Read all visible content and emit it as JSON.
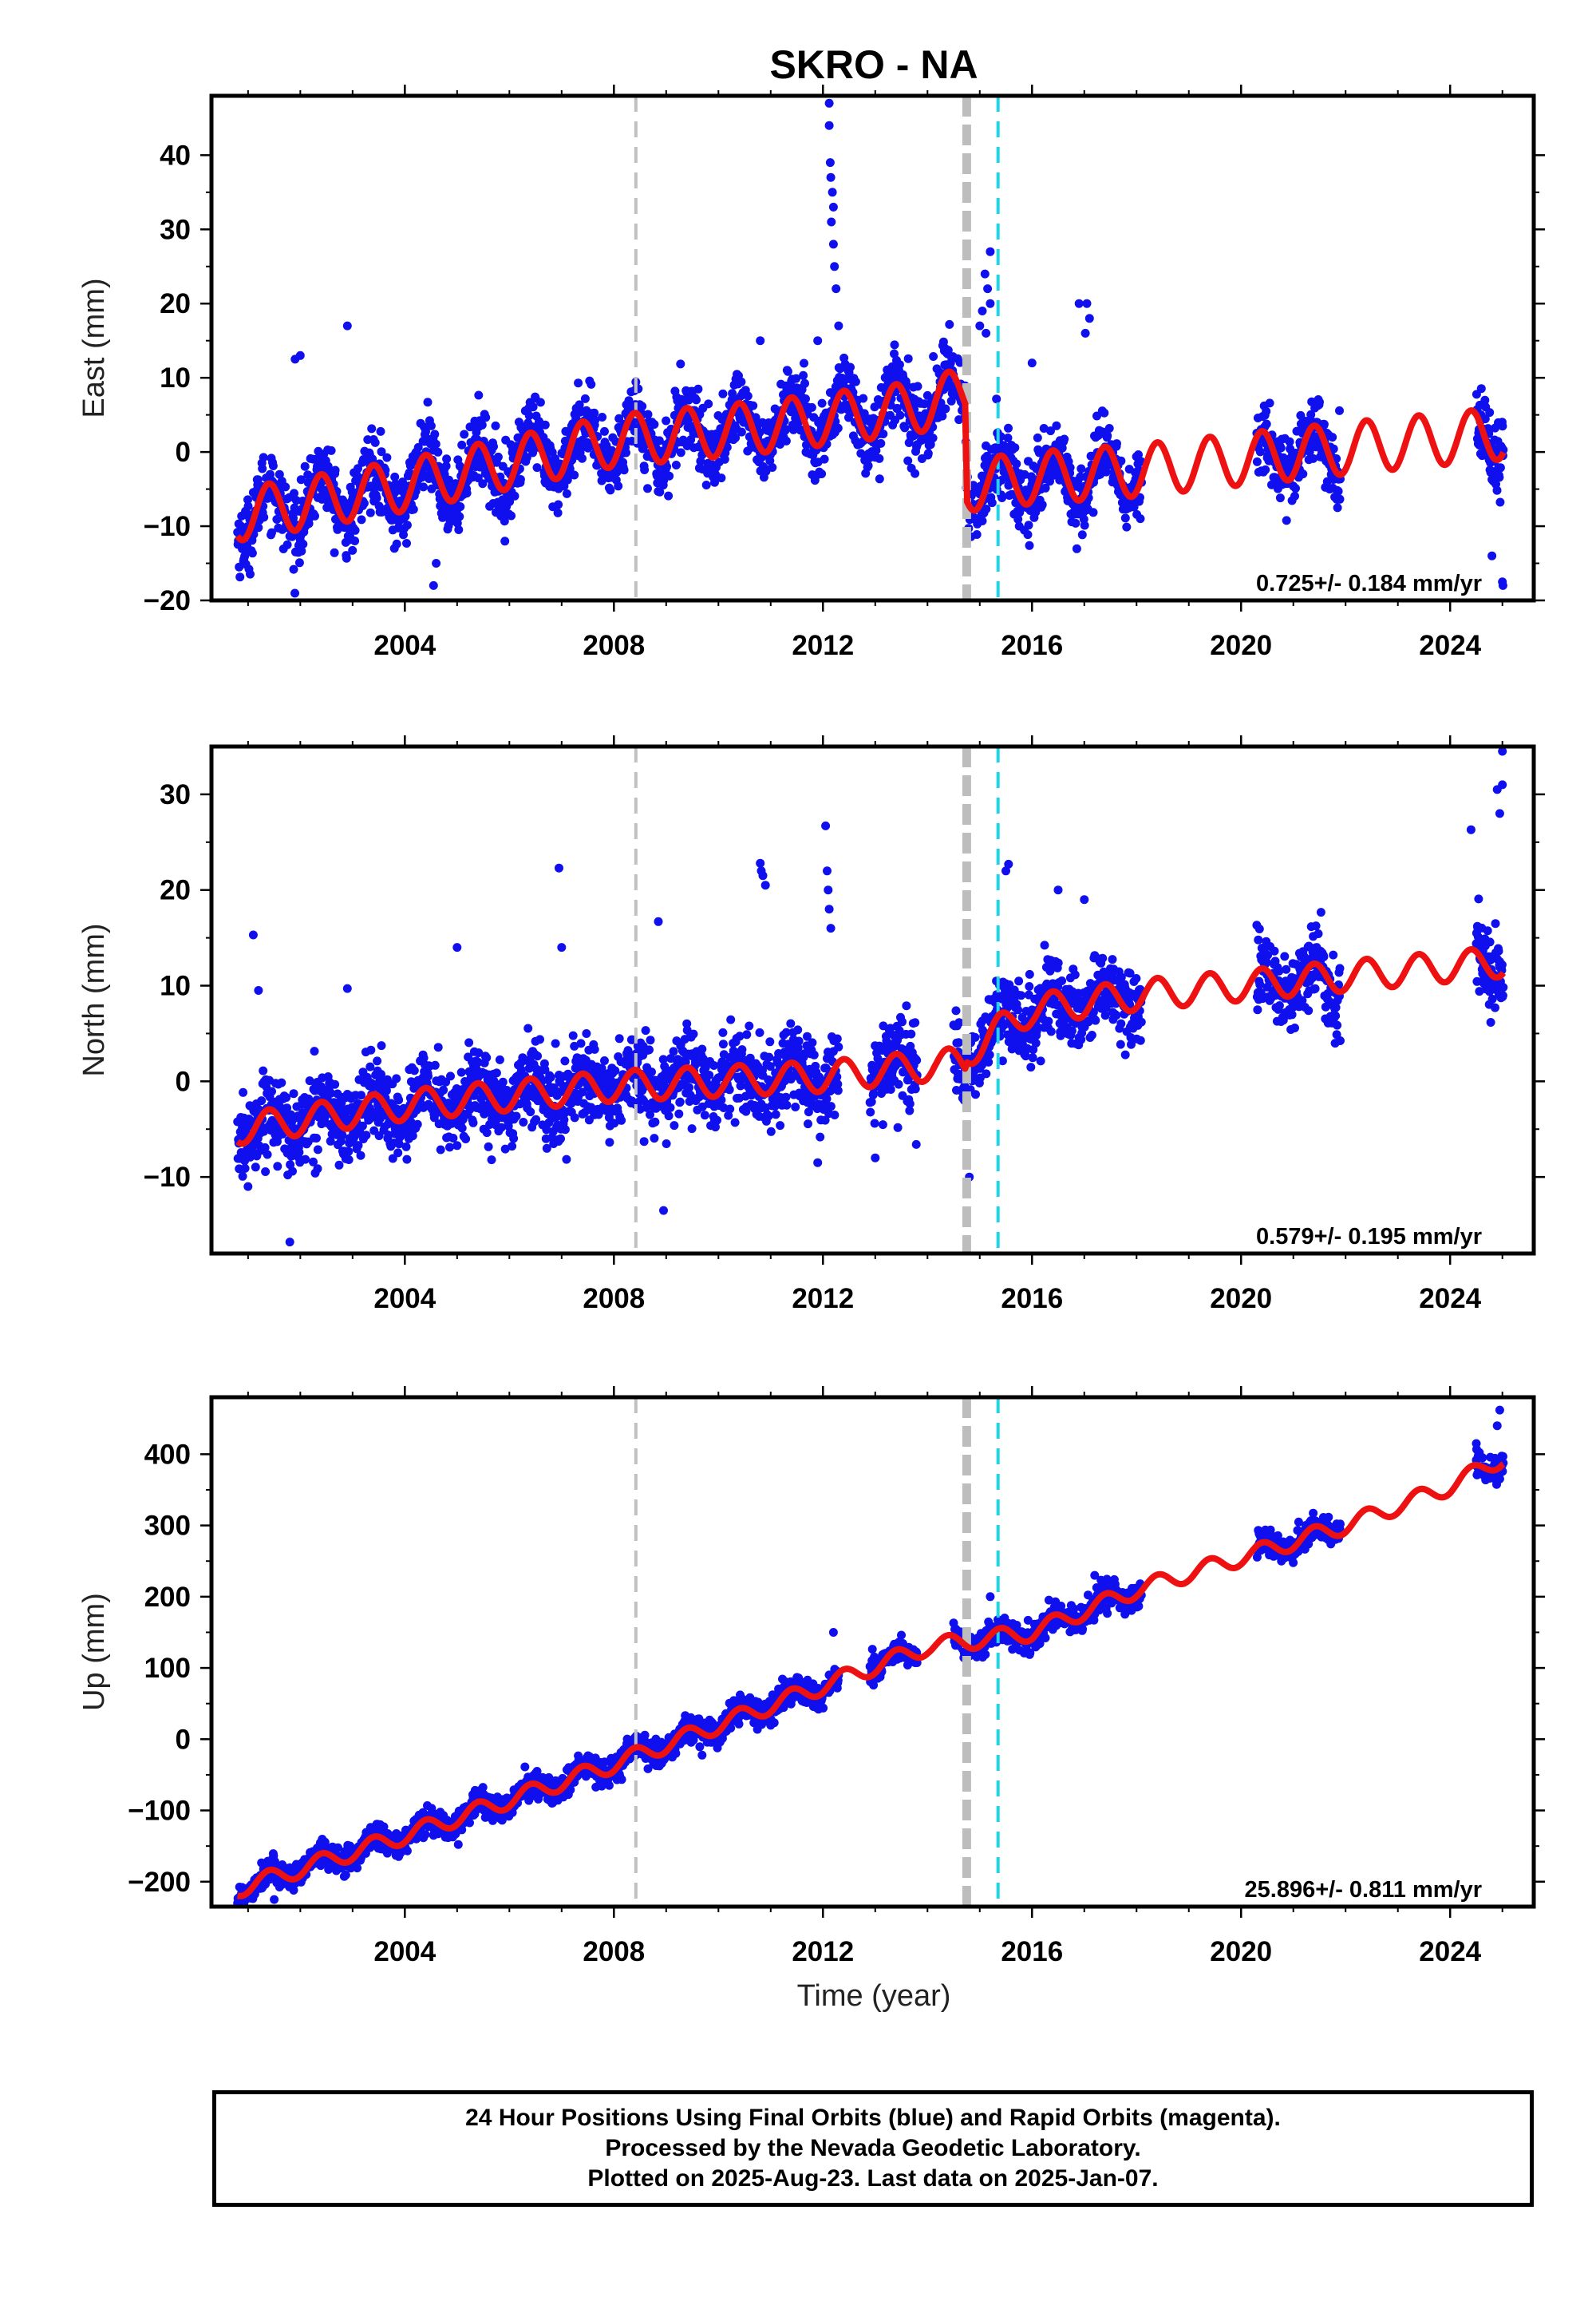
{
  "title": "SKRO - NA",
  "xlabel": "Time (year)",
  "footer": {
    "line1": "24 Hour Positions Using Final Orbits (blue) and Rapid Orbits (magenta).",
    "line2": "Processed by the Nevada Geodetic Laboratory.",
    "line3": "Plotted on 2025-Aug-23. Last data on 2025-Jan-07."
  },
  "colors": {
    "final_orbits": "#1010ee",
    "model": "#ee1111",
    "antenna_change": "#c0c0c0",
    "equipment_change": "#bdbdbd",
    "earthquake": "#1fd4e8"
  },
  "chart_data": [
    {
      "type": "scatter",
      "name": "east",
      "ylabel": "East (mm)",
      "xlim": [
        2000.3,
        2025.6
      ],
      "ylim": [
        -20,
        48
      ],
      "xticks": [
        2004,
        2008,
        2012,
        2016,
        2020,
        2024
      ],
      "yticks": [
        -20,
        -10,
        0,
        10,
        20,
        30,
        40
      ],
      "ytick_labels": [
        "−20",
        "−10",
        "0",
        "10",
        "20",
        "30",
        "40"
      ],
      "rate_label": "0.725+/- 0.184 mm/yr",
      "vlines": [
        {
          "x": 2008.42,
          "kind": "antenna_change"
        },
        {
          "x": 2014.75,
          "kind": "equipment_change"
        },
        {
          "x": 2015.35,
          "kind": "earthquake"
        }
      ],
      "data_segments": [
        [
          2000.8,
          2018.1
        ],
        [
          2020.3,
          2021.9
        ],
        [
          2024.5,
          2025.02
        ]
      ],
      "trend_knots": [
        [
          2000.8,
          -8.5
        ],
        [
          2004.0,
          -4.5
        ],
        [
          2008.0,
          1.5
        ],
        [
          2011.0,
          3.5
        ],
        [
          2013.8,
          6.0
        ],
        [
          2014.72,
          8.0
        ],
        [
          2014.76,
          -4.5
        ],
        [
          2016.0,
          -3.5
        ],
        [
          2018.0,
          -2.5
        ],
        [
          2020.0,
          -1.0
        ],
        [
          2022.0,
          0.5
        ],
        [
          2025.0,
          2.5
        ]
      ],
      "seasonal_amplitude": 3.5,
      "noise": 2.4,
      "outliers": [
        [
          2012.12,
          47
        ],
        [
          2012.12,
          44
        ],
        [
          2012.14,
          39
        ],
        [
          2012.15,
          37
        ],
        [
          2012.18,
          35
        ],
        [
          2012.2,
          33
        ],
        [
          2012.16,
          31
        ],
        [
          2012.2,
          28
        ],
        [
          2012.22,
          25
        ],
        [
          2012.25,
          22
        ],
        [
          2012.3,
          17
        ],
        [
          2015.1,
          24
        ],
        [
          2015.15,
          22
        ],
        [
          2015.2,
          20
        ],
        [
          2015.05,
          19
        ],
        [
          2015.12,
          16
        ],
        [
          2015.2,
          27
        ],
        [
          2015.0,
          17
        ],
        [
          2017.05,
          20
        ],
        [
          2017.1,
          18
        ],
        [
          2017.02,
          16
        ],
        [
          2016.0,
          12
        ],
        [
          2002.9,
          17
        ],
        [
          2001.9,
          12.5
        ],
        [
          2002.0,
          13
        ],
        [
          2004.55,
          -18
        ],
        [
          2004.6,
          -15
        ],
        [
          2003.8,
          -13
        ],
        [
          2024.8,
          -14
        ],
        [
          2025.01,
          -18
        ],
        [
          2025.0,
          -17.5
        ],
        [
          2010.8,
          15
        ],
        [
          2011.9,
          15
        ],
        [
          2016.9,
          20
        ]
      ]
    },
    {
      "type": "scatter",
      "name": "north",
      "ylabel": "North (mm)",
      "xlim": [
        2000.3,
        2025.6
      ],
      "ylim": [
        -18,
        35
      ],
      "xticks": [
        2004,
        2008,
        2012,
        2016,
        2020,
        2024
      ],
      "yticks": [
        -10,
        0,
        10,
        20,
        30
      ],
      "ytick_labels": [
        "−10",
        "0",
        "10",
        "20",
        "30"
      ],
      "rate_label": "0.579+/- 0.195 mm/yr",
      "vlines": [
        {
          "x": 2008.42,
          "kind": "antenna_change"
        },
        {
          "x": 2014.75,
          "kind": "equipment_change"
        },
        {
          "x": 2015.35,
          "kind": "earthquake"
        }
      ],
      "data_segments": [
        [
          2000.8,
          2012.3
        ],
        [
          2012.9,
          2013.8
        ],
        [
          2014.5,
          2018.1
        ],
        [
          2020.3,
          2021.9
        ],
        [
          2024.5,
          2025.02
        ]
      ],
      "trend_knots": [
        [
          2000.8,
          -5.0
        ],
        [
          2004.0,
          -2.5
        ],
        [
          2008.0,
          -0.5
        ],
        [
          2012.0,
          0.5
        ],
        [
          2014.72,
          2.0
        ],
        [
          2014.76,
          3.0
        ],
        [
          2015.4,
          5.5
        ],
        [
          2016.0,
          7.5
        ],
        [
          2018.0,
          9.0
        ],
        [
          2021.0,
          10.5
        ],
        [
          2025.0,
          12.5
        ]
      ],
      "seasonal_amplitude": 1.6,
      "noise": 2.1,
      "outliers": [
        [
          2001.1,
          15.3
        ],
        [
          2001.2,
          9.5
        ],
        [
          2002.9,
          9.7
        ],
        [
          2006.95,
          22.3
        ],
        [
          2007.0,
          14.0
        ],
        [
          2008.85,
          16.7
        ],
        [
          2005.0,
          14.0
        ],
        [
          2010.8,
          22.8
        ],
        [
          2010.82,
          22.0
        ],
        [
          2010.85,
          21.5
        ],
        [
          2010.9,
          20.5
        ],
        [
          2012.05,
          26.7
        ],
        [
          2012.08,
          22.0
        ],
        [
          2012.1,
          20.0
        ],
        [
          2012.12,
          18.0
        ],
        [
          2012.15,
          16.0
        ],
        [
          2015.5,
          22.0
        ],
        [
          2015.55,
          22.7
        ],
        [
          2017.0,
          19.0
        ],
        [
          2016.5,
          20.0
        ],
        [
          2024.4,
          26.3
        ],
        [
          2025.0,
          34.5
        ],
        [
          2025.0,
          31.0
        ],
        [
          2024.9,
          30.5
        ],
        [
          2024.95,
          28.0
        ],
        [
          2008.95,
          -13.5
        ],
        [
          2001.8,
          -16.8
        ],
        [
          2014.8,
          -10.0
        ],
        [
          2013.0,
          -8.0
        ],
        [
          2001.0,
          -11.0
        ],
        [
          2011.9,
          -8.5
        ]
      ]
    },
    {
      "type": "scatter",
      "name": "up",
      "ylabel": "Up (mm)",
      "xlim": [
        2000.3,
        2025.6
      ],
      "ylim": [
        -235,
        480
      ],
      "xticks": [
        2004,
        2008,
        2012,
        2016,
        2020,
        2024
      ],
      "yticks": [
        -200,
        -100,
        0,
        100,
        200,
        300,
        400
      ],
      "ytick_labels": [
        "−200",
        "−100",
        "0",
        "100",
        "200",
        "300",
        "400"
      ],
      "rate_label": "25.896+/- 0.811 mm/yr",
      "vlines": [
        {
          "x": 2008.42,
          "kind": "antenna_change"
        },
        {
          "x": 2014.75,
          "kind": "equipment_change"
        },
        {
          "x": 2015.35,
          "kind": "earthquake"
        }
      ],
      "data_segments": [
        [
          2000.8,
          2012.3
        ],
        [
          2012.9,
          2013.8
        ],
        [
          2014.5,
          2018.1
        ],
        [
          2020.3,
          2021.9
        ],
        [
          2024.5,
          2025.02
        ]
      ],
      "trend_knots": [
        [
          2000.8,
          -210
        ],
        [
          2004.0,
          -135
        ],
        [
          2008.0,
          -35
        ],
        [
          2012.0,
          75
        ],
        [
          2014.0,
          130
        ],
        [
          2016.0,
          150
        ],
        [
          2018.0,
          210
        ],
        [
          2020.0,
          255
        ],
        [
          2022.0,
          300
        ],
        [
          2024.0,
          355
        ],
        [
          2025.0,
          395
        ]
      ],
      "seasonal_amplitude": 12,
      "noise": 9,
      "outliers": [
        [
          2024.95,
          462
        ],
        [
          2024.9,
          440
        ],
        [
          2012.2,
          150
        ],
        [
          2015.2,
          200
        ],
        [
          2017.2,
          230
        ],
        [
          2024.5,
          415
        ],
        [
          2001.5,
          -225
        ]
      ]
    }
  ]
}
